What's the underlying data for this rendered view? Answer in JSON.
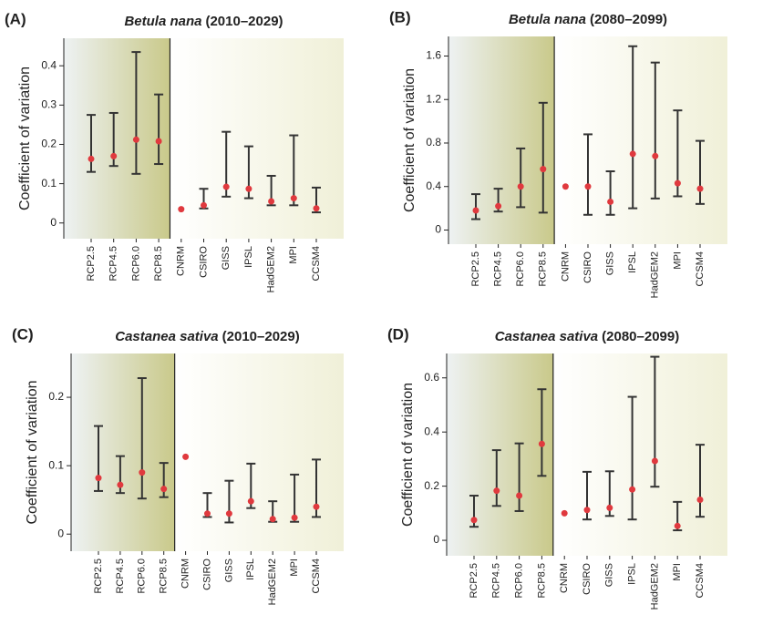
{
  "chart_data": [
    {
      "type": "errorbar",
      "panel_label": "(A)",
      "title": "Betula nana",
      "title_period": "(2010–2029)",
      "ylabel": "Coefficient of variation",
      "categories": [
        "RCP2.5",
        "RCP4.5",
        "RCP6.0",
        "RCP8.5",
        "CNRM",
        "CSIRO",
        "GISS",
        "IPSL",
        "HadGEM2",
        "MPI",
        "CCSM4"
      ],
      "values": [
        0.163,
        0.17,
        0.212,
        0.208,
        0.035,
        0.045,
        0.092,
        0.087,
        0.055,
        0.063,
        0.037
      ],
      "low": [
        0.13,
        0.145,
        0.125,
        0.15,
        null,
        0.037,
        0.067,
        0.063,
        0.045,
        0.045,
        0.027
      ],
      "high": [
        0.275,
        0.28,
        0.435,
        0.327,
        null,
        0.087,
        0.232,
        0.195,
        0.12,
        0.223,
        0.09
      ],
      "color": "#e0393e",
      "bar_color": "#333333",
      "ylim": [
        -0.04,
        0.47
      ],
      "yticks": [
        0,
        0.1,
        0.2,
        0.3,
        0.4
      ]
    },
    {
      "type": "errorbar",
      "panel_label": "(B)",
      "title": "Betula nana",
      "title_period": "(2080–2099)",
      "ylabel": "Coefficient of variation",
      "categories": [
        "RCP2.5",
        "RCP4.5",
        "RCP6.0",
        "RCP8.5",
        "CNRM",
        "CSIRO",
        "GISS",
        "IPSL",
        "HadGEM2",
        "MPI",
        "CCSM4"
      ],
      "values": [
        0.18,
        0.22,
        0.4,
        0.56,
        0.4,
        0.4,
        0.26,
        0.7,
        0.68,
        0.43,
        0.38
      ],
      "low": [
        0.1,
        0.17,
        0.21,
        0.16,
        null,
        0.14,
        0.14,
        0.2,
        0.29,
        0.31,
        0.24
      ],
      "high": [
        0.33,
        0.38,
        0.75,
        1.17,
        null,
        0.88,
        0.54,
        1.69,
        1.54,
        1.1,
        0.82
      ],
      "color": "#e0393e",
      "bar_color": "#333333",
      "ylim": [
        -0.13,
        1.78
      ],
      "yticks": [
        0,
        0.4,
        0.8,
        1.2,
        1.6
      ]
    },
    {
      "type": "errorbar",
      "panel_label": "(C)",
      "title": "Castanea sativa",
      "title_period": "(2010–2029)",
      "ylabel": "Coefficient of variation",
      "categories": [
        "RCP2.5",
        "RCP4.5",
        "RCP6.0",
        "RCP8.5",
        "CNRM",
        "CSIRO",
        "GISS",
        "IPSL",
        "HadGEM2",
        "MPI",
        "CCSM4"
      ],
      "values": [
        0.082,
        0.072,
        0.09,
        0.066,
        0.113,
        0.03,
        0.03,
        0.048,
        0.022,
        0.024,
        0.04
      ],
      "low": [
        0.063,
        0.06,
        0.052,
        0.054,
        null,
        0.025,
        0.017,
        0.038,
        0.018,
        0.018,
        0.025
      ],
      "high": [
        0.158,
        0.114,
        0.228,
        0.104,
        null,
        0.06,
        0.078,
        0.103,
        0.048,
        0.087,
        0.109
      ],
      "color": "#e0393e",
      "bar_color": "#333333",
      "ylim": [
        -0.025,
        0.264
      ],
      "yticks": [
        0,
        0.1,
        0.2
      ]
    },
    {
      "type": "errorbar",
      "panel_label": "(D)",
      "title": "Castanea sativa",
      "title_period": "(2080–2099)",
      "ylabel": "Coefficient of variation",
      "categories": [
        "RCP2.5",
        "RCP4.5",
        "RCP6.0",
        "RCP8.5",
        "CNRM",
        "CSIRO",
        "GISS",
        "IPSL",
        "HadGEM2",
        "MPI",
        "CCSM4"
      ],
      "values": [
        0.075,
        0.183,
        0.165,
        0.356,
        0.1,
        0.112,
        0.12,
        0.188,
        0.293,
        0.053,
        0.15
      ],
      "low": [
        0.05,
        0.127,
        0.108,
        0.238,
        null,
        0.077,
        0.09,
        0.077,
        0.198,
        0.037,
        0.087
      ],
      "high": [
        0.165,
        0.333,
        0.358,
        0.558,
        null,
        0.253,
        0.255,
        0.53,
        0.678,
        0.142,
        0.353
      ],
      "color": "#e0393e",
      "bar_color": "#333333",
      "ylim": [
        -0.057,
        0.69
      ],
      "yticks": [
        0,
        0.2,
        0.4,
        0.6
      ]
    }
  ]
}
